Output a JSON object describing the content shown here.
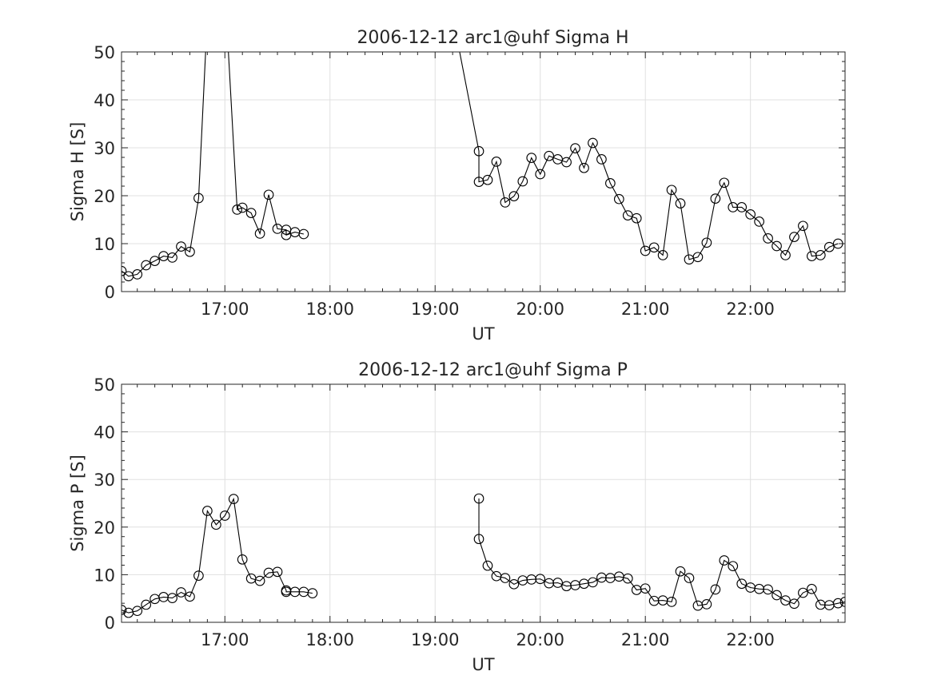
{
  "chart_data": [
    {
      "type": "line",
      "title": "2006-12-12  arc1@uhf Sigma H",
      "xlabel": "UT",
      "ylabel": "Sigma H [S]",
      "xlim": [
        "16:01",
        "22:54"
      ],
      "ylim": [
        0,
        50
      ],
      "xticks": [
        "17:00",
        "18:00",
        "19:00",
        "20:00",
        "21:00",
        "22:00"
      ],
      "yticks": [
        0,
        10,
        20,
        30,
        40,
        50
      ],
      "grid": true,
      "marker": "open-circle",
      "line_color": "#000000",
      "series": [
        {
          "x": [
            "16:01",
            "16:05",
            "16:10",
            "16:15",
            "16:20",
            "16:25",
            "16:30",
            "16:35",
            "16:40",
            "16:45",
            "16:49",
            "16:53",
            "17:02",
            "17:07",
            "17:10",
            "17:15",
            "17:20",
            "17:25",
            "17:30",
            "17:35",
            "17:35",
            "17:40",
            "17:45",
            "17:50",
            "17:55",
            "19:14",
            "19:25",
            "19:25",
            "19:30",
            "19:35",
            "19:40",
            "19:45",
            "19:50",
            "19:55",
            "20:00",
            "20:05",
            "20:10",
            "20:15",
            "20:20",
            "20:25",
            "20:30",
            "20:35",
            "20:40",
            "20:45",
            "20:50",
            "20:55",
            "21:00",
            "21:05",
            "21:10",
            "21:15",
            "21:20",
            "21:25",
            "21:30",
            "21:35",
            "21:40",
            "21:45",
            "21:50",
            "21:55",
            "22:00",
            "22:05",
            "22:10",
            "22:15",
            "22:20",
            "22:25",
            "22:30",
            "22:35",
            "22:40",
            "22:45",
            "22:50",
            "22:54"
          ],
          "y": [
            4.3,
            3.2,
            3.6,
            5.5,
            6.4,
            7.4,
            7.1,
            9.4,
            8.3,
            19.5,
            50,
            50,
            50,
            17.1,
            17.5,
            16.4,
            12.1,
            20.2,
            13.1,
            12.9,
            11.8,
            12.4,
            12.0,
            null,
            50,
            50,
            29.3,
            22.9,
            23.3,
            27.1,
            18.6,
            19.9,
            23.0,
            27.9,
            24.5,
            28.3,
            27.6,
            27.0,
            29.9,
            25.8,
            31.0,
            27.6,
            22.6,
            19.3,
            15.9,
            15.3,
            8.5,
            9.2,
            7.6,
            21.2,
            18.4,
            6.7,
            7.2,
            10.2,
            19.4,
            22.7,
            17.6,
            17.6,
            16.1,
            14.6,
            11.1,
            9.5,
            7.6,
            11.4,
            13.7,
            7.4,
            7.6,
            9.3,
            10.0,
            null
          ]
        }
      ]
    },
    {
      "type": "line",
      "title": "2006-12-12  arc1@uhf Sigma P",
      "xlabel": "UT",
      "ylabel": "Sigma P [S]",
      "xlim": [
        "16:01",
        "22:54"
      ],
      "ylim": [
        0,
        50
      ],
      "xticks": [
        "17:00",
        "18:00",
        "19:00",
        "20:00",
        "21:00",
        "22:00"
      ],
      "yticks": [
        0,
        10,
        20,
        30,
        40,
        50
      ],
      "grid": true,
      "marker": "open-circle",
      "line_color": "#000000",
      "series": [
        {
          "x": [
            "16:01",
            "16:05",
            "16:10",
            "16:15",
            "16:20",
            "16:25",
            "16:30",
            "16:35",
            "16:40",
            "16:45",
            "16:50",
            "16:55",
            "17:00",
            "17:05",
            "17:10",
            "17:15",
            "17:20",
            "17:25",
            "17:30",
            "17:35",
            "17:35",
            "17:40",
            "17:45",
            "17:50",
            "17:55",
            "19:25",
            "19:25",
            "19:30",
            "19:35",
            "19:40",
            "19:45",
            "19:50",
            "19:55",
            "20:00",
            "20:05",
            "20:10",
            "20:15",
            "20:20",
            "20:25",
            "20:30",
            "20:35",
            "20:40",
            "20:45",
            "20:50",
            "20:55",
            "21:00",
            "21:05",
            "21:10",
            "21:15",
            "21:20",
            "21:25",
            "21:30",
            "21:35",
            "21:40",
            "21:45",
            "21:50",
            "21:55",
            "22:00",
            "22:05",
            "22:10",
            "22:15",
            "22:20",
            "22:25",
            "22:30",
            "22:35",
            "22:40",
            "22:45",
            "22:50",
            "22:54"
          ],
          "y": [
            2.6,
            2.0,
            2.4,
            3.7,
            4.9,
            5.3,
            5.1,
            6.3,
            5.4,
            9.8,
            23.4,
            20.5,
            22.4,
            25.9,
            13.2,
            9.2,
            8.7,
            10.4,
            10.6,
            6.7,
            6.4,
            6.4,
            6.4,
            6.1,
            null,
            26.0,
            17.5,
            11.9,
            9.7,
            9.3,
            8.0,
            8.8,
            9.0,
            9.1,
            8.2,
            8.3,
            7.6,
            7.8,
            8.1,
            8.4,
            9.4,
            9.3,
            9.6,
            9.2,
            6.8,
            7.1,
            4.5,
            4.6,
            4.3,
            10.7,
            9.3,
            3.5,
            3.8,
            6.9,
            13.0,
            11.8,
            8.1,
            7.3,
            7.0,
            6.9,
            5.7,
            4.6,
            3.9,
            6.2,
            7.0,
            3.7,
            3.6,
            4.0,
            4.3
          ]
        }
      ]
    }
  ]
}
